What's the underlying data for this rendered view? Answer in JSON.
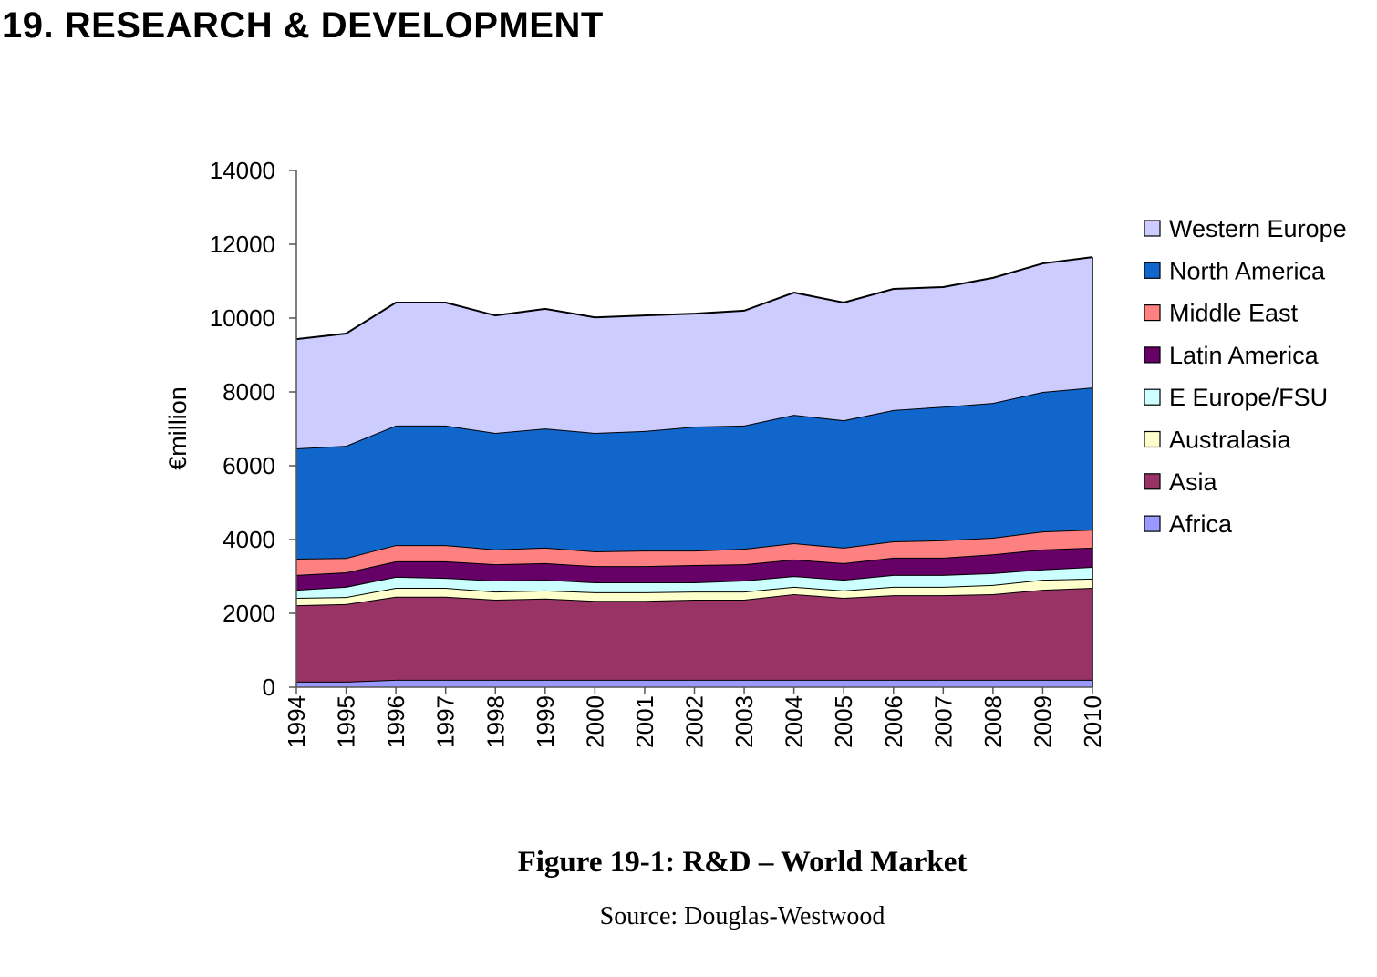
{
  "page": {
    "heading": "19. RESEARCH & DEVELOPMENT",
    "caption": "Figure 19-1: R&D – World Market",
    "source": "Source: Douglas-Westwood"
  },
  "chart_data": {
    "type": "area",
    "stacked": true,
    "title": "",
    "xlabel": "",
    "ylabel": "€million",
    "ylim": [
      0,
      14000
    ],
    "yticks": [
      0,
      2000,
      4000,
      6000,
      8000,
      10000,
      12000,
      14000
    ],
    "grid": false,
    "legend_position": "right",
    "categories": [
      "1994",
      "1995",
      "1996",
      "1997",
      "1998",
      "1999",
      "2000",
      "2001",
      "2002",
      "2003",
      "2004",
      "2005",
      "2006",
      "2007",
      "2008",
      "2009",
      "2010"
    ],
    "series": [
      {
        "name": "Africa",
        "color": "#9999ff",
        "values": [
          150,
          150,
          200,
          200,
          200,
          200,
          200,
          200,
          200,
          200,
          200,
          200,
          200,
          200,
          200,
          200,
          200
        ]
      },
      {
        "name": "Asia",
        "color": "#993366",
        "values": [
          2070,
          2100,
          2250,
          2250,
          2170,
          2200,
          2140,
          2140,
          2170,
          2170,
          2320,
          2220,
          2290,
          2290,
          2320,
          2440,
          2490
        ]
      },
      {
        "name": "Australasia",
        "color": "#ffffcc",
        "values": [
          200,
          190,
          240,
          240,
          220,
          220,
          230,
          230,
          220,
          220,
          200,
          200,
          230,
          230,
          250,
          270,
          250
        ]
      },
      {
        "name": "E Europe/FSU",
        "color": "#ccffff",
        "values": [
          220,
          280,
          300,
          270,
          300,
          290,
          270,
          270,
          250,
          300,
          290,
          290,
          320,
          320,
          320,
          280,
          320
        ]
      },
      {
        "name": "Latin America",
        "color": "#660066",
        "values": [
          400,
          390,
          420,
          450,
          440,
          450,
          440,
          440,
          470,
          440,
          450,
          450,
          470,
          470,
          510,
          540,
          520
        ]
      },
      {
        "name": "Middle East",
        "color": "#ff8080",
        "values": [
          440,
          390,
          440,
          440,
          400,
          420,
          400,
          420,
          390,
          420,
          440,
          420,
          440,
          470,
          450,
          490,
          490
        ]
      },
      {
        "name": "North America",
        "color": "#1166cc",
        "values": [
          2990,
          3040,
          3240,
          3240,
          3160,
          3230,
          3210,
          3240,
          3360,
          3340,
          3480,
          3450,
          3560,
          3620,
          3650,
          3780,
          3850
        ]
      },
      {
        "name": "Western Europe",
        "color": "#ccccff",
        "values": [
          2960,
          3040,
          3330,
          3330,
          3180,
          3240,
          3130,
          3130,
          3060,
          3110,
          3310,
          3190,
          3280,
          3240,
          3390,
          3480,
          3530
        ]
      }
    ]
  }
}
